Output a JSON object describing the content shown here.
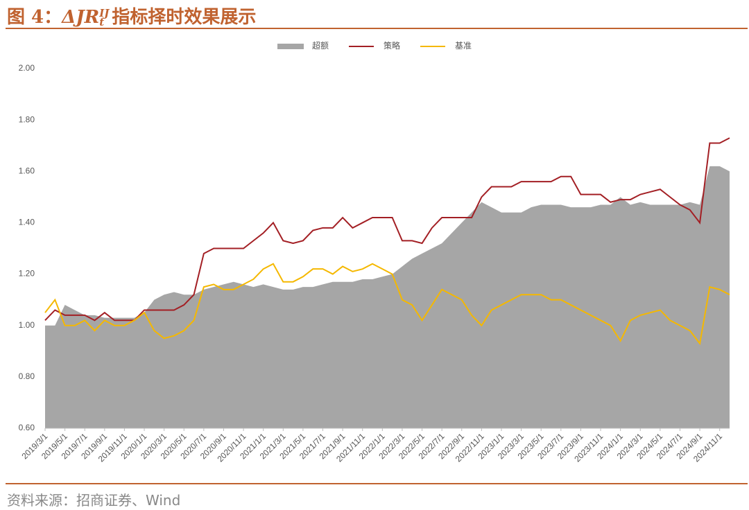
{
  "header": {
    "label": "图 4：",
    "symbol": "ΔJR",
    "superscript": "IJ",
    "subscript": "t",
    "text": "指标择时效果展示"
  },
  "chart_data": {
    "type": "line",
    "categories": [
      "2019/3/1",
      null,
      "2019/5/1",
      null,
      "2019/7/1",
      null,
      "2019/9/1",
      null,
      "2019/11/1",
      null,
      "2020/1/1",
      null,
      "2020/3/1",
      null,
      "2020/5/1",
      null,
      "2020/7/1",
      null,
      "2020/9/1",
      null,
      "2020/11/1",
      null,
      "2021/1/1",
      null,
      "2021/3/1",
      null,
      "2021/5/1",
      null,
      "2021/7/1",
      null,
      "2021/9/1",
      null,
      "2021/11/1",
      null,
      "2022/1/1",
      null,
      "2022/3/1",
      null,
      "2022/5/1",
      null,
      "2022/7/1",
      null,
      "2022/9/1",
      null,
      "2022/11/1",
      null,
      "2023/1/1",
      null,
      "2023/3/1",
      null,
      "2023/5/1",
      null,
      "2023/7/1",
      null,
      "2023/9/1",
      null,
      "2023/11/1",
      null,
      "2024/1/1",
      null,
      "2024/3/1",
      null,
      "2024/5/1",
      null,
      "2024/7/1",
      null,
      "2024/9/1",
      null,
      "2024/11/1",
      null
    ],
    "series": [
      {
        "name": "超额",
        "kind": "area",
        "color": "#a6a6a6",
        "values": [
          1.0,
          1.0,
          1.08,
          1.06,
          1.04,
          1.04,
          1.03,
          1.03,
          1.03,
          1.03,
          1.05,
          1.1,
          1.12,
          1.13,
          1.12,
          1.12,
          1.14,
          1.15,
          1.16,
          1.17,
          1.16,
          1.15,
          1.16,
          1.15,
          1.14,
          1.14,
          1.15,
          1.15,
          1.16,
          1.17,
          1.17,
          1.17,
          1.18,
          1.18,
          1.19,
          1.2,
          1.23,
          1.26,
          1.28,
          1.3,
          1.32,
          1.36,
          1.4,
          1.44,
          1.48,
          1.46,
          1.44,
          1.44,
          1.44,
          1.46,
          1.47,
          1.47,
          1.47,
          1.46,
          1.46,
          1.46,
          1.47,
          1.47,
          1.5,
          1.47,
          1.48,
          1.47,
          1.47,
          1.47,
          1.47,
          1.48,
          1.47,
          1.62,
          1.62,
          1.6
        ]
      },
      {
        "name": "策略",
        "kind": "line",
        "color": "#a31f24",
        "values": [
          1.02,
          1.06,
          1.04,
          1.04,
          1.04,
          1.02,
          1.05,
          1.02,
          1.02,
          1.02,
          1.06,
          1.06,
          1.06,
          1.06,
          1.08,
          1.12,
          1.28,
          1.3,
          1.3,
          1.3,
          1.3,
          1.33,
          1.36,
          1.4,
          1.33,
          1.32,
          1.33,
          1.37,
          1.38,
          1.38,
          1.42,
          1.38,
          1.4,
          1.42,
          1.42,
          1.42,
          1.33,
          1.33,
          1.32,
          1.38,
          1.42,
          1.42,
          1.42,
          1.42,
          1.5,
          1.54,
          1.54,
          1.54,
          1.56,
          1.56,
          1.56,
          1.56,
          1.58,
          1.58,
          1.51,
          1.51,
          1.51,
          1.48,
          1.49,
          1.49,
          1.51,
          1.52,
          1.53,
          1.5,
          1.47,
          1.45,
          1.4,
          1.71,
          1.71,
          1.73
        ]
      },
      {
        "name": "基准",
        "kind": "line",
        "color": "#f5b800",
        "values": [
          1.05,
          1.1,
          1.0,
          1.0,
          1.02,
          0.98,
          1.02,
          1.0,
          1.0,
          1.02,
          1.05,
          0.98,
          0.95,
          0.96,
          0.98,
          1.02,
          1.15,
          1.16,
          1.14,
          1.14,
          1.16,
          1.18,
          1.22,
          1.24,
          1.17,
          1.17,
          1.19,
          1.22,
          1.22,
          1.2,
          1.23,
          1.21,
          1.22,
          1.24,
          1.22,
          1.2,
          1.1,
          1.08,
          1.02,
          1.08,
          1.14,
          1.12,
          1.1,
          1.04,
          1.0,
          1.06,
          1.08,
          1.1,
          1.12,
          1.12,
          1.12,
          1.1,
          1.1,
          1.08,
          1.06,
          1.04,
          1.02,
          1.0,
          0.94,
          1.02,
          1.04,
          1.05,
          1.06,
          1.02,
          1.0,
          0.98,
          0.93,
          1.15,
          1.14,
          1.12
        ]
      }
    ],
    "ylim": [
      0.6,
      2.0
    ],
    "yticks": [
      {
        "value": 0.6,
        "label": "0.60"
      },
      {
        "value": 0.8,
        "label": "0.80"
      },
      {
        "value": 1.0,
        "label": "1.00"
      },
      {
        "value": 1.2,
        "label": "1.20"
      },
      {
        "value": 1.4,
        "label": "1.40"
      },
      {
        "value": 1.6,
        "label": "1.60"
      },
      {
        "value": 1.8,
        "label": "1.80"
      },
      {
        "value": 2.0,
        "label": "2.00"
      }
    ],
    "grid": false,
    "legend": "top"
  },
  "footer": {
    "source": "资料来源：招商证券、Wind"
  }
}
